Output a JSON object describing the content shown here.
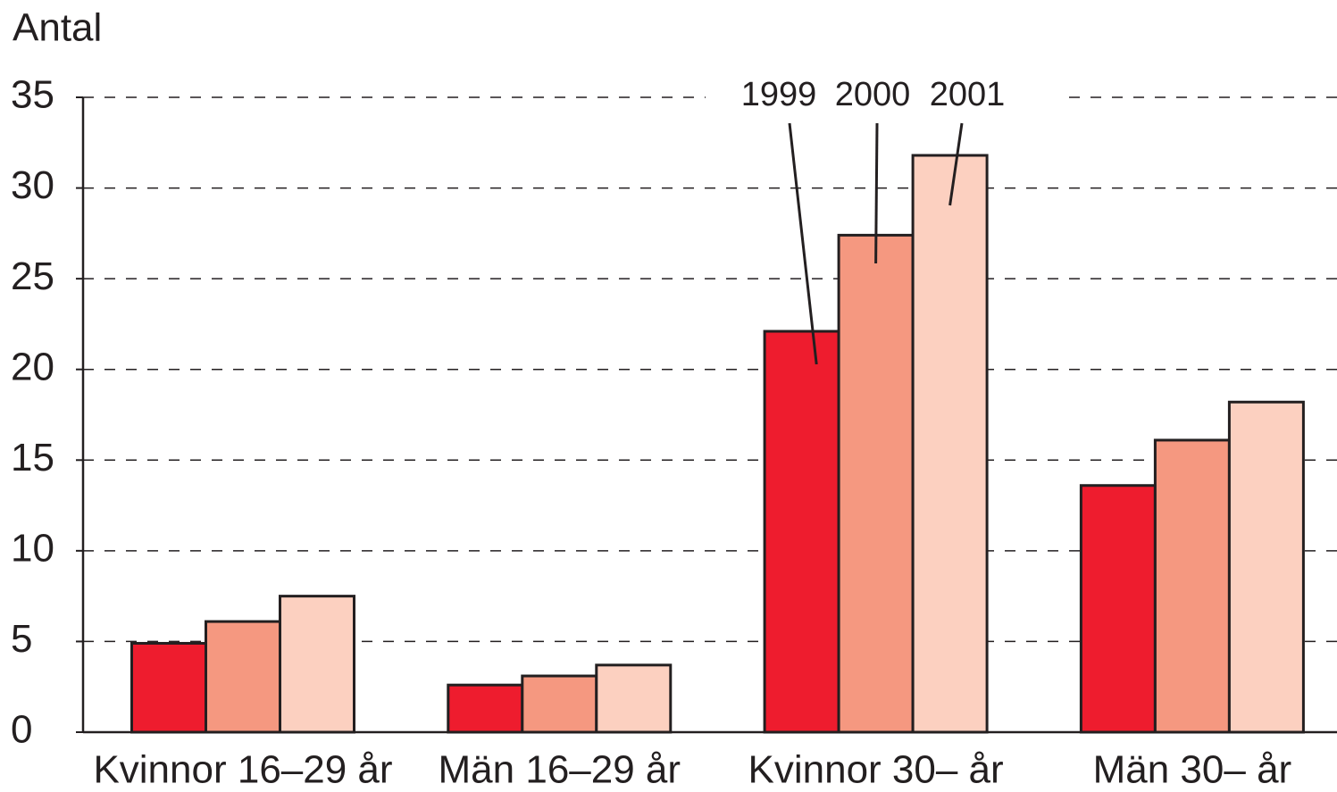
{
  "chart_data": {
    "type": "bar",
    "y_label": "Antal",
    "categories": [
      "Kvinnor 16–29 år",
      "Män 16–29 år",
      "Kvinnor 30– år",
      "Män 30– år"
    ],
    "series": [
      {
        "name": "1999",
        "color": "#ee1c2e",
        "values": [
          4.9,
          2.6,
          22.1,
          13.6
        ]
      },
      {
        "name": "2000",
        "color": "#f59880",
        "values": [
          6.1,
          3.1,
          27.4,
          16.1
        ]
      },
      {
        "name": "2001",
        "color": "#fcd0c0",
        "values": [
          7.5,
          3.7,
          31.8,
          18.2
        ]
      }
    ],
    "ylim": [
      0,
      35
    ],
    "yticks": [
      0,
      5,
      10,
      15,
      20,
      25,
      30,
      35
    ],
    "grid": true
  }
}
